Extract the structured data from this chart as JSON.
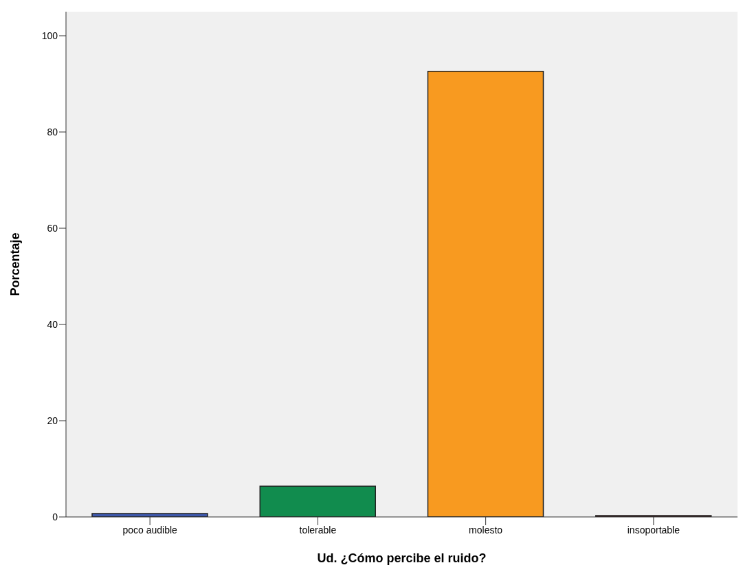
{
  "chart_data": {
    "type": "bar",
    "xlabel": "Ud. ¿Cómo percibe el ruido?",
    "ylabel": "Porcentaje",
    "categories": [
      "poco audible",
      "tolerable",
      "molesto",
      "insoportable"
    ],
    "values": [
      0.7,
      6.4,
      92.6,
      0.3
    ],
    "colors": [
      "#3e58ac",
      "#118c4e",
      "#f89a20",
      "#6a1e20"
    ],
    "ylim": [
      0,
      105
    ],
    "yticks": [
      0,
      20,
      40,
      60,
      80,
      100
    ],
    "grid": false,
    "legend": false
  }
}
